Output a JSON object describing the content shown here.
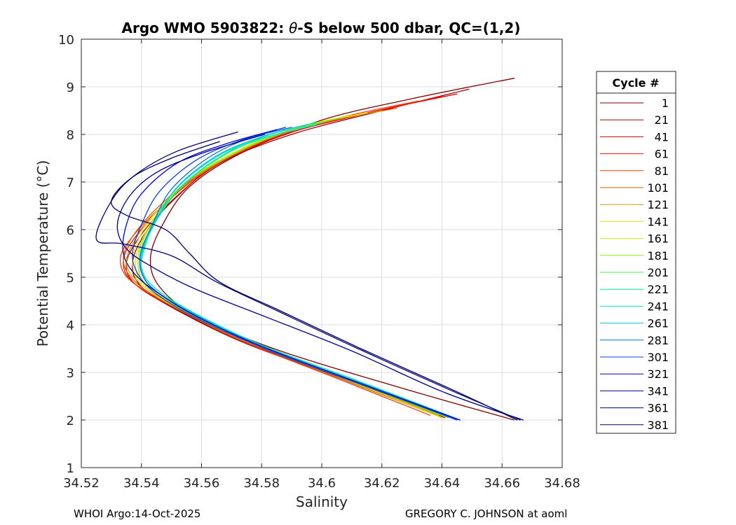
{
  "chart_data": {
    "type": "line",
    "title_prefix": "Argo WMO 5903822: ",
    "title_symbol": "θ",
    "title_suffix": "-S below 500 dbar,  QC=(1,2)",
    "xlabel": "Salinity",
    "ylabel": "Potential Temperature (°C)",
    "xlim": [
      34.52,
      34.68
    ],
    "ylim": [
      1,
      10
    ],
    "xticks": [
      34.52,
      34.54,
      34.56,
      34.58,
      34.6,
      34.62,
      34.64,
      34.66,
      34.68
    ],
    "xtick_labels": [
      "34.52",
      "34.54",
      "34.56",
      "34.58",
      "34.6",
      "34.62",
      "34.64",
      "34.66",
      "34.68"
    ],
    "yticks": [
      1,
      2,
      3,
      4,
      5,
      6,
      7,
      8,
      9,
      10
    ],
    "ytick_labels": [
      "1",
      "2",
      "3",
      "4",
      "5",
      "6",
      "7",
      "8",
      "9",
      "10"
    ],
    "grid": true,
    "legend_title": "Cycle #",
    "legend_position": "outside-right",
    "series": [
      {
        "name": "1",
        "color": "#7f0000",
        "salinity": [
          34.664,
          34.63,
          34.6,
          34.573,
          34.556,
          34.547,
          34.543,
          34.546,
          34.558,
          34.584,
          34.625,
          34.664
        ],
        "theta": [
          9.18,
          8.75,
          8.3,
          7.6,
          6.9,
          6.1,
          5.4,
          4.8,
          4.2,
          3.5,
          2.7,
          2.0
        ]
      },
      {
        "name": "21",
        "color": "#a50000",
        "salinity": [
          34.649,
          34.62,
          34.59,
          34.566,
          34.552,
          34.542,
          34.537,
          34.54,
          34.552,
          34.575,
          34.61,
          34.641
        ],
        "theta": [
          8.95,
          8.5,
          8.0,
          7.4,
          6.7,
          6.0,
          5.3,
          4.8,
          4.3,
          3.6,
          2.8,
          2.05
        ]
      },
      {
        "name": "41",
        "color": "#cc0000",
        "salinity": [
          34.645,
          34.615,
          34.588,
          34.565,
          34.55,
          34.54,
          34.535,
          34.538,
          34.551,
          34.574,
          34.61,
          34.64
        ],
        "theta": [
          8.85,
          8.45,
          8.0,
          7.35,
          6.6,
          5.9,
          5.3,
          4.85,
          4.35,
          3.65,
          2.8,
          2.05
        ]
      },
      {
        "name": "61",
        "color": "#ee1010",
        "salinity": [
          34.64,
          34.612,
          34.585,
          34.563,
          34.548,
          34.538,
          34.534,
          34.537,
          34.55,
          34.573,
          34.608,
          34.638
        ],
        "theta": [
          8.8,
          8.4,
          7.95,
          7.3,
          6.55,
          5.85,
          5.35,
          4.9,
          4.4,
          3.7,
          2.85,
          2.1
        ]
      },
      {
        "name": "81",
        "color": "#ff3a00",
        "salinity": [
          34.632,
          34.606,
          34.582,
          34.562,
          34.547,
          34.537,
          34.533,
          34.536,
          34.549,
          34.572,
          34.606,
          34.636
        ],
        "theta": [
          8.7,
          8.35,
          7.9,
          7.25,
          6.5,
          5.85,
          5.4,
          4.95,
          4.45,
          3.7,
          2.85,
          2.1
        ]
      },
      {
        "name": "101",
        "color": "#d86000",
        "salinity": [
          34.625,
          34.6,
          34.58,
          34.56,
          34.546,
          34.537,
          34.534,
          34.538,
          34.55,
          34.573,
          34.607,
          34.638
        ],
        "theta": [
          8.55,
          8.25,
          7.85,
          7.2,
          6.5,
          5.85,
          5.35,
          4.9,
          4.4,
          3.7,
          2.85,
          2.1
        ]
      },
      {
        "name": "121",
        "color": "#c8a000",
        "salinity": [
          34.62,
          34.597,
          34.578,
          34.559,
          34.546,
          34.538,
          34.535,
          34.539,
          34.551,
          34.574,
          34.608,
          34.639
        ],
        "theta": [
          8.5,
          8.2,
          7.8,
          7.15,
          6.45,
          5.8,
          5.3,
          4.9,
          4.4,
          3.7,
          2.85,
          2.1
        ]
      },
      {
        "name": "141",
        "color": "#e8e000",
        "salinity": [
          34.615,
          34.595,
          34.577,
          34.558,
          34.546,
          34.539,
          34.537,
          34.54,
          34.552,
          34.575,
          34.609,
          34.64
        ],
        "theta": [
          8.45,
          8.2,
          7.8,
          7.15,
          6.45,
          5.8,
          5.3,
          4.85,
          4.35,
          3.65,
          2.85,
          2.1
        ]
      },
      {
        "name": "161",
        "color": "#c4f000",
        "salinity": [
          34.61,
          34.592,
          34.575,
          34.557,
          34.546,
          34.54,
          34.538,
          34.541,
          34.553,
          34.576,
          34.61,
          34.64
        ],
        "theta": [
          8.4,
          8.15,
          7.75,
          7.1,
          6.4,
          5.75,
          5.25,
          4.85,
          4.35,
          3.65,
          2.8,
          2.05
        ]
      },
      {
        "name": "181",
        "color": "#8ef000",
        "salinity": [
          34.606,
          34.59,
          34.574,
          34.556,
          34.546,
          34.54,
          34.539,
          34.542,
          34.554,
          34.577,
          34.611,
          34.642
        ],
        "theta": [
          8.35,
          8.1,
          7.7,
          7.05,
          6.35,
          5.7,
          5.2,
          4.8,
          4.3,
          3.6,
          2.8,
          2.05
        ]
      },
      {
        "name": "201",
        "color": "#40f040",
        "salinity": [
          34.6,
          34.585,
          34.57,
          34.555,
          34.546,
          34.541,
          34.54,
          34.543,
          34.555,
          34.578,
          34.612,
          34.643
        ],
        "theta": [
          8.25,
          8.0,
          7.65,
          7.0,
          6.3,
          5.7,
          5.2,
          4.8,
          4.3,
          3.6,
          2.8,
          2.05
        ]
      },
      {
        "name": "221",
        "color": "#00e890",
        "salinity": [
          34.598,
          34.583,
          34.568,
          34.554,
          34.546,
          34.541,
          34.54,
          34.544,
          34.556,
          34.579,
          34.613,
          34.644
        ],
        "theta": [
          8.25,
          8.0,
          7.6,
          6.95,
          6.3,
          5.65,
          5.2,
          4.8,
          4.3,
          3.6,
          2.8,
          2.05
        ]
      },
      {
        "name": "241",
        "color": "#00e8d0",
        "salinity": [
          34.598,
          34.582,
          34.567,
          34.553,
          34.545,
          34.541,
          34.54,
          34.544,
          34.557,
          34.58,
          34.614,
          34.646
        ],
        "theta": [
          8.2,
          7.95,
          7.6,
          6.95,
          6.25,
          5.6,
          5.15,
          4.75,
          4.25,
          3.55,
          2.75,
          2.0
        ]
      },
      {
        "name": "261",
        "color": "#00c0f0",
        "salinity": [
          34.595,
          34.58,
          34.565,
          34.552,
          34.545,
          34.54,
          34.54,
          34.544,
          34.557,
          34.58,
          34.614,
          34.645
        ],
        "theta": [
          8.2,
          7.95,
          7.55,
          6.9,
          6.2,
          5.6,
          5.15,
          4.75,
          4.25,
          3.55,
          2.75,
          2.0
        ]
      },
      {
        "name": "281",
        "color": "#0070e0",
        "salinity": [
          34.59,
          34.575,
          34.562,
          34.55,
          34.544,
          34.54,
          34.54,
          34.545,
          34.558,
          34.581,
          34.615,
          34.646
        ],
        "theta": [
          8.15,
          7.9,
          7.5,
          6.85,
          6.15,
          5.55,
          5.1,
          4.7,
          4.2,
          3.5,
          2.7,
          2.0
        ]
      },
      {
        "name": "301",
        "color": "#1040e8",
        "salinity": [
          34.588,
          34.572,
          34.558,
          34.546,
          34.54,
          34.537,
          34.539,
          34.545,
          34.558,
          34.581,
          34.615,
          34.645
        ],
        "theta": [
          8.15,
          7.85,
          7.45,
          6.8,
          6.1,
          5.5,
          5.05,
          4.65,
          4.15,
          3.5,
          2.7,
          2.0
        ]
      },
      {
        "name": "321",
        "color": "#0000d0",
        "salinity": [
          34.585,
          34.568,
          34.552,
          34.54,
          34.535,
          34.534,
          34.538,
          34.546,
          34.559,
          34.582,
          34.616,
          34.646
        ],
        "theta": [
          8.1,
          7.8,
          7.4,
          6.75,
          6.1,
          5.5,
          5.05,
          4.65,
          4.15,
          3.5,
          2.7,
          2.0
        ]
      },
      {
        "name": "341",
        "color": "#00008c",
        "salinity": [
          34.581,
          34.56,
          34.545,
          34.536,
          34.532,
          34.535,
          34.544,
          34.558,
          34.58,
          34.61,
          34.64,
          34.667
        ],
        "theta": [
          8.0,
          7.6,
          7.2,
          6.7,
          6.1,
          5.6,
          5.2,
          4.75,
          4.2,
          3.45,
          2.6,
          2.0
        ]
      },
      {
        "name": "361",
        "color": "#00007a",
        "salinity": [
          34.572,
          34.552,
          34.538,
          34.53,
          34.525,
          34.534,
          34.55,
          34.565,
          34.585,
          34.612,
          34.642,
          34.666
        ],
        "theta": [
          8.05,
          7.65,
          7.15,
          6.6,
          5.8,
          5.7,
          5.45,
          4.9,
          4.3,
          3.5,
          2.65,
          2.0
        ]
      },
      {
        "name": "381",
        "color": "#000064",
        "salinity": [
          34.566,
          34.55,
          34.537,
          34.53,
          34.535,
          34.548,
          34.556,
          34.566,
          34.586,
          34.613,
          34.643,
          34.665
        ],
        "theta": [
          7.85,
          7.5,
          7.1,
          6.6,
          6.3,
          6.0,
          5.5,
          4.9,
          4.3,
          3.5,
          2.65,
          2.0
        ]
      }
    ]
  },
  "footer": {
    "left": "WHOI Argo:14-Oct-2025",
    "right": "GREGORY C. JOHNSON at aoml"
  }
}
